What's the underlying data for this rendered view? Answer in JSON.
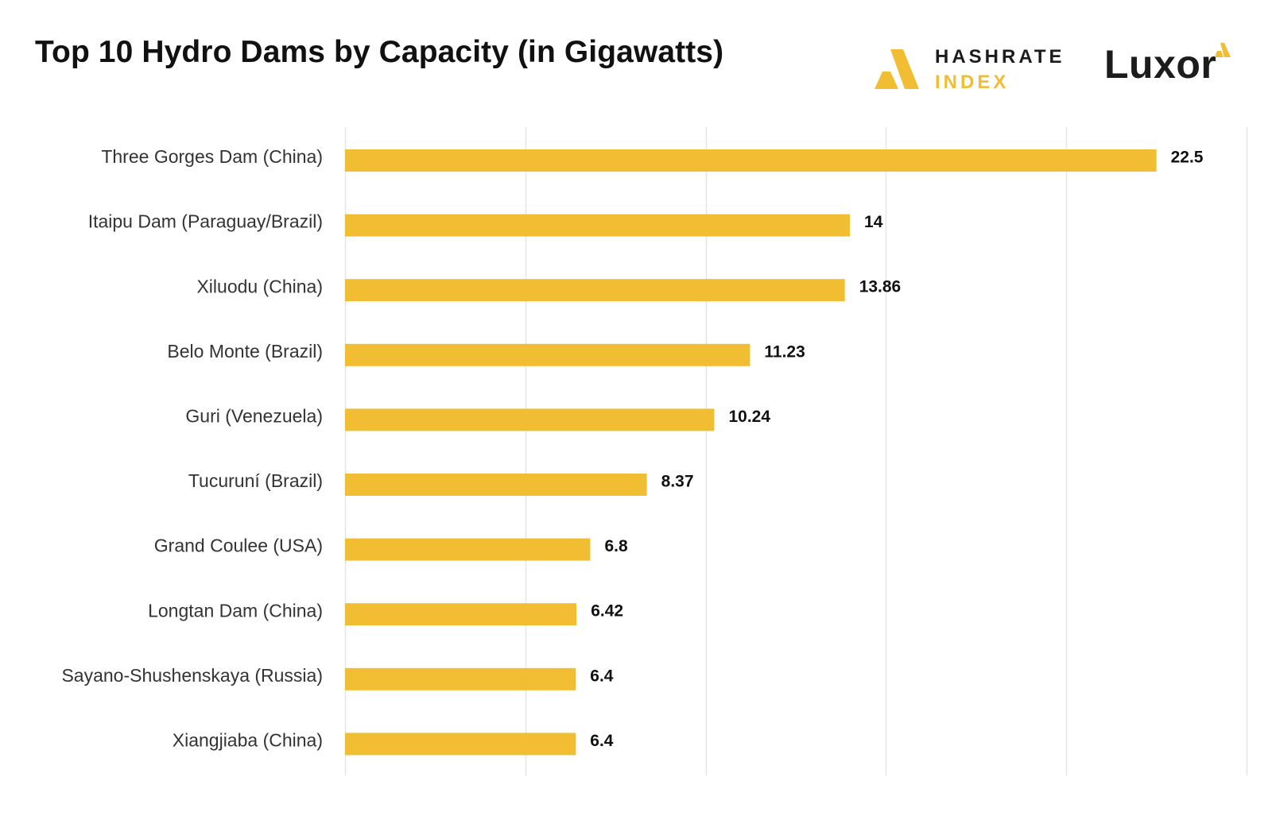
{
  "header": {
    "title": "Top 10 Hydro Dams by Capacity (in Gigawatts)"
  },
  "brands": {
    "hashrate": {
      "line1": "HASHRATE",
      "line2": "INDEX"
    },
    "luxor": {
      "name": "Luxor"
    }
  },
  "colors": {
    "bar": "#f0bd33",
    "grid": "#e6e6e6",
    "text": "#111111",
    "category_text": "#333333"
  },
  "chart_data": {
    "type": "bar",
    "orientation": "horizontal",
    "title": "Top 10 Hydro Dams by Capacity (in Gigawatts)",
    "categories": [
      "Three Gorges Dam (China)",
      "Itaipu Dam (Paraguay/Brazil)",
      "Xiluodu (China)",
      "Belo Monte (Brazil)",
      "Guri (Venezuela)",
      "Tucuruní (Brazil)",
      "Grand Coulee (USA)",
      "Longtan Dam (China)",
      "Sayano-Shushenskaya (Russia)",
      "Xiangjiaba (China)"
    ],
    "values": [
      22.5,
      14,
      13.86,
      11.23,
      10.24,
      8.37,
      6.8,
      6.42,
      6.4,
      6.4
    ],
    "value_labels": [
      "22.5",
      "14",
      "13.86",
      "11.23",
      "10.24",
      "8.37",
      "6.8",
      "6.42",
      "6.4",
      "6.4"
    ],
    "xlim": [
      0,
      25
    ],
    "grid": true,
    "xticks_shown": false,
    "legend": "none"
  }
}
